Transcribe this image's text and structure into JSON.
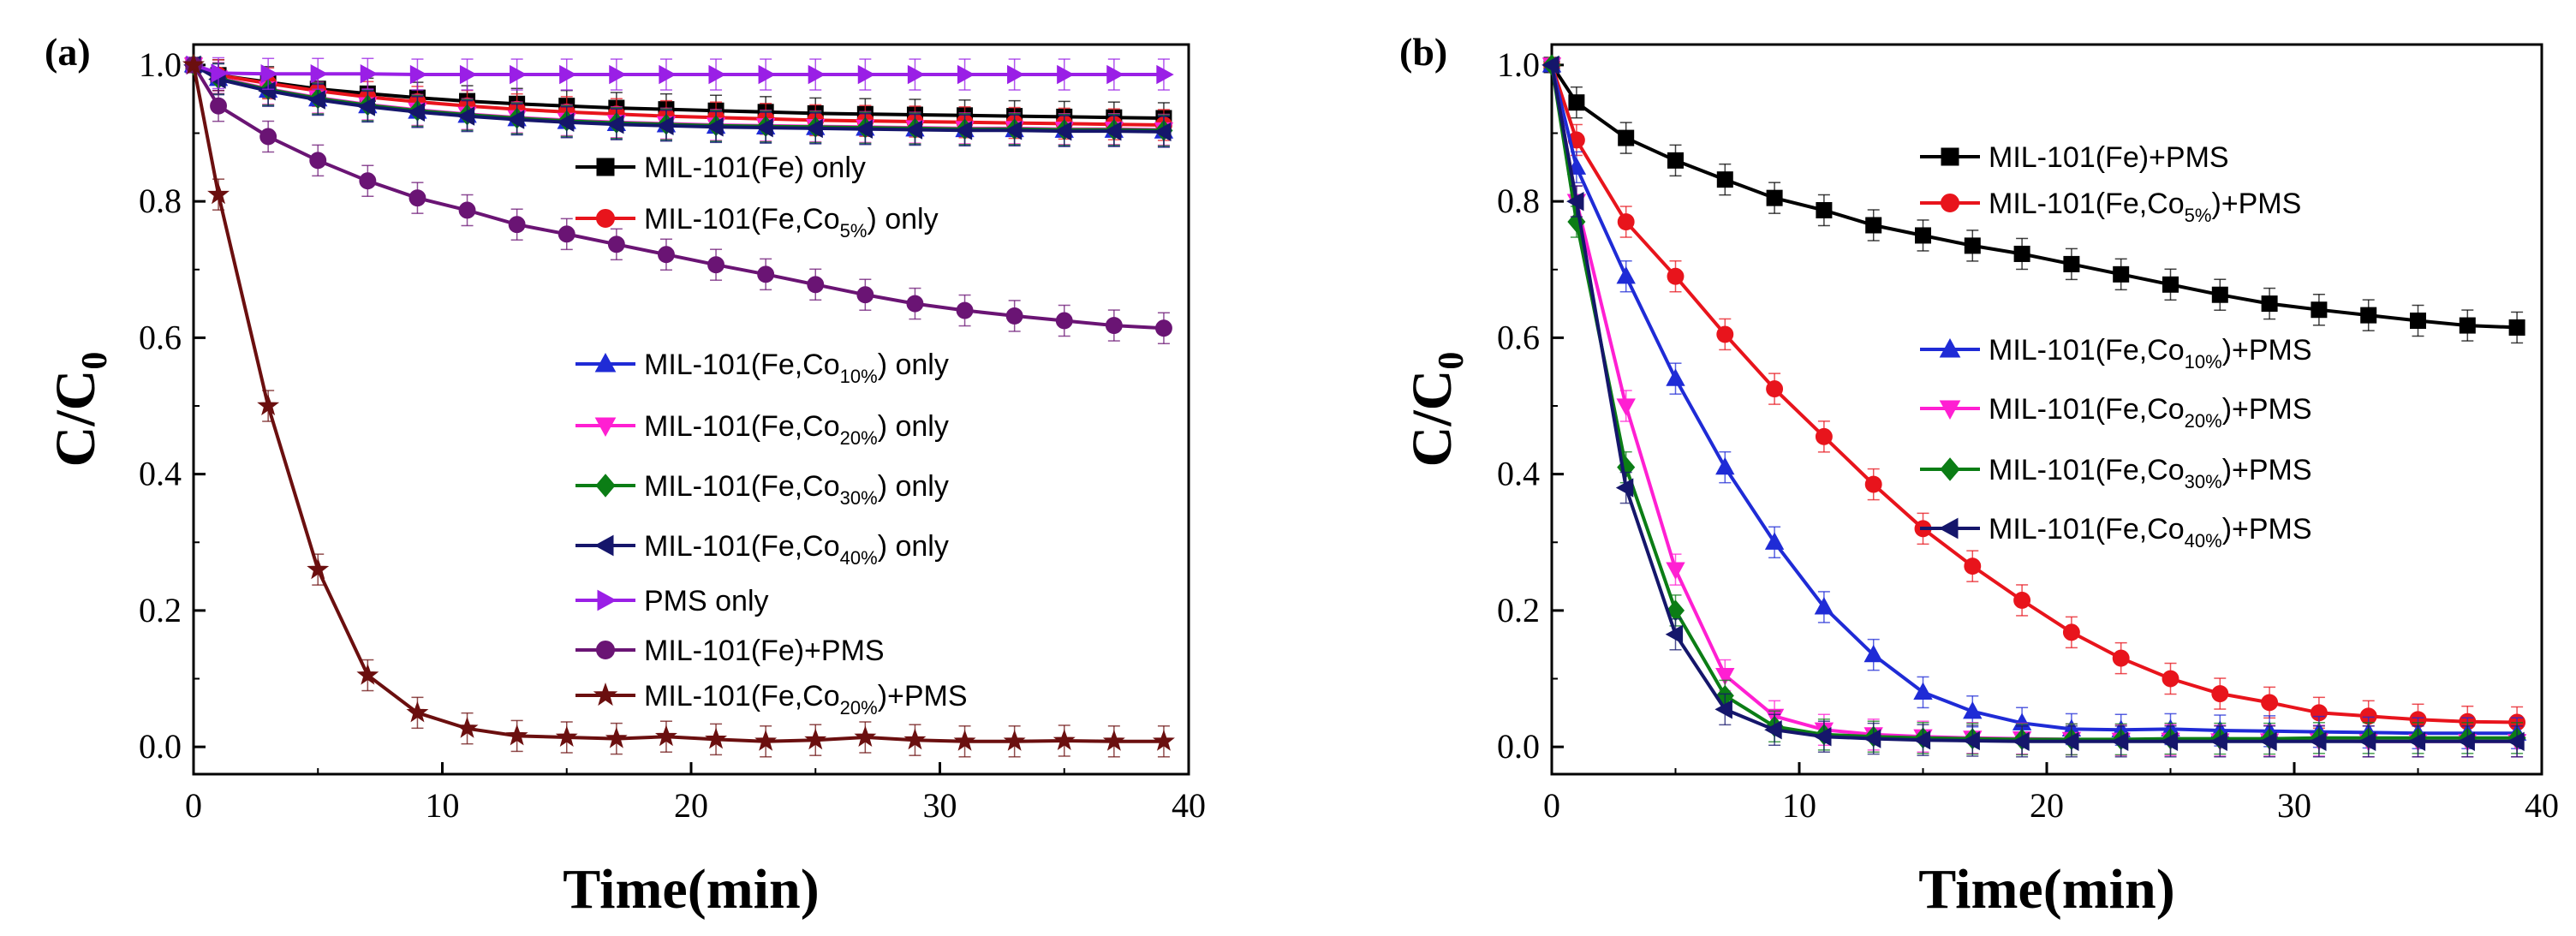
{
  "chart_data": [
    {
      "panel": "(a)",
      "type": "line",
      "xlabel": "Time(min)",
      "ylabel": "C/C0",
      "xlim": [
        0,
        40
      ],
      "ylim": [
        -0.04,
        1.03
      ],
      "xticks": [
        0,
        10,
        20,
        30,
        40
      ],
      "yticks": [
        0.0,
        0.2,
        0.4,
        0.6,
        0.8,
        1.0
      ],
      "x": [
        0,
        1,
        3,
        5,
        7,
        9,
        11,
        13,
        15,
        17,
        19,
        21,
        23,
        25,
        27,
        29,
        31,
        33,
        35,
        37,
        39
      ],
      "legend_position": "right, stacked",
      "series": [
        {
          "name": "MIL-101(Fe) only",
          "label_main": "MIL-101(Fe) only",
          "label_sub": "",
          "label_tail": "",
          "color": "#000000",
          "marker": "square",
          "values": [
            1.0,
            0.985,
            0.975,
            0.965,
            0.958,
            0.952,
            0.947,
            0.943,
            0.94,
            0.937,
            0.935,
            0.933,
            0.931,
            0.929,
            0.928,
            0.927,
            0.926,
            0.925,
            0.924,
            0.923,
            0.922
          ]
        },
        {
          "name": "MIL-101(Fe,Co5%) only",
          "label_main": "MIL-101(Fe,Co",
          "label_sub": "5%",
          "label_tail": ") only",
          "color": "#e8141c",
          "marker": "circle",
          "values": [
            1.0,
            0.985,
            0.973,
            0.962,
            0.953,
            0.946,
            0.94,
            0.935,
            0.931,
            0.928,
            0.925,
            0.923,
            0.921,
            0.919,
            0.918,
            0.917,
            0.916,
            0.915,
            0.914,
            0.913,
            0.912
          ]
        },
        {
          "name": "MIL-101(Fe,Co10%) only",
          "label_main": "MIL-101(Fe,Co",
          "label_sub": "10%",
          "label_tail": ") only",
          "color": "#1f2bd6",
          "marker": "triangle-up",
          "values": [
            1.0,
            0.98,
            0.963,
            0.95,
            0.94,
            0.932,
            0.926,
            0.921,
            0.917,
            0.914,
            0.912,
            0.91,
            0.909,
            0.908,
            0.907,
            0.906,
            0.905,
            0.905,
            0.904,
            0.904,
            0.903
          ]
        },
        {
          "name": "MIL-101(Fe,Co20%) only",
          "label_main": "MIL-101(Fe,Co",
          "label_sub": "20%",
          "label_tail": ") only",
          "color": "#ff1fd2",
          "marker": "triangle-down",
          "values": [
            1.0,
            0.981,
            0.965,
            0.952,
            0.942,
            0.934,
            0.928,
            0.923,
            0.919,
            0.916,
            0.914,
            0.912,
            0.911,
            0.91,
            0.909,
            0.908,
            0.907,
            0.907,
            0.906,
            0.906,
            0.905
          ]
        },
        {
          "name": "MIL-101(Fe,Co30%) only",
          "label_main": "MIL-101(Fe,Co",
          "label_sub": "30%",
          "label_tail": ") only",
          "color": "#0b7d15",
          "marker": "diamond",
          "values": [
            1.0,
            0.98,
            0.964,
            0.951,
            0.941,
            0.933,
            0.927,
            0.922,
            0.918,
            0.915,
            0.913,
            0.911,
            0.91,
            0.909,
            0.908,
            0.907,
            0.906,
            0.906,
            0.905,
            0.905,
            0.904
          ]
        },
        {
          "name": "MIL-101(Fe,Co40%) only",
          "label_main": "MIL-101(Fe,Co",
          "label_sub": "40%",
          "label_tail": ") only",
          "color": "#15166b",
          "marker": "triangle-left",
          "values": [
            1.0,
            0.979,
            0.962,
            0.949,
            0.939,
            0.931,
            0.925,
            0.92,
            0.916,
            0.913,
            0.911,
            0.909,
            0.908,
            0.907,
            0.906,
            0.905,
            0.904,
            0.904,
            0.903,
            0.903,
            0.902
          ]
        },
        {
          "name": "PMS only",
          "label_main": "PMS only",
          "label_sub": "",
          "label_tail": "",
          "color": "#9a1fe6",
          "marker": "triangle-right",
          "values": [
            1.0,
            0.988,
            0.987,
            0.987,
            0.987,
            0.986,
            0.986,
            0.986,
            0.986,
            0.986,
            0.986,
            0.986,
            0.986,
            0.986,
            0.986,
            0.986,
            0.986,
            0.986,
            0.986,
            0.986,
            0.986
          ]
        },
        {
          "name": "MIL-101(Fe)+PMS",
          "label_main": "MIL-101(Fe)+PMS",
          "label_sub": "",
          "label_tail": "",
          "color": "#6a1474",
          "marker": "circle",
          "values": [
            1.0,
            0.94,
            0.895,
            0.86,
            0.83,
            0.805,
            0.787,
            0.766,
            0.752,
            0.737,
            0.722,
            0.707,
            0.693,
            0.678,
            0.663,
            0.65,
            0.64,
            0.632,
            0.625,
            0.618,
            0.614
          ]
        },
        {
          "name": "MIL-101(Fe,Co20%)+PMS",
          "label_main": "MIL-101(Fe,Co",
          "label_sub": "20%",
          "label_tail": ")+PMS",
          "color": "#6b0f0f",
          "marker": "star",
          "values": [
            1.0,
            0.81,
            0.5,
            0.26,
            0.105,
            0.05,
            0.027,
            0.016,
            0.014,
            0.012,
            0.015,
            0.011,
            0.008,
            0.01,
            0.014,
            0.01,
            0.008,
            0.008,
            0.009,
            0.008,
            0.008
          ]
        }
      ]
    },
    {
      "panel": "(b)",
      "type": "line",
      "xlabel": "Time(min)",
      "ylabel": "C/C0",
      "xlim": [
        0,
        40
      ],
      "ylim": [
        -0.04,
        1.03
      ],
      "xticks": [
        0,
        10,
        20,
        30,
        40
      ],
      "yticks": [
        0.0,
        0.2,
        0.4,
        0.6,
        0.8,
        1.0
      ],
      "x": [
        0,
        1,
        3,
        5,
        7,
        9,
        11,
        13,
        15,
        17,
        19,
        21,
        23,
        25,
        27,
        29,
        31,
        33,
        35,
        37,
        39
      ],
      "legend_position": "top-right",
      "series": [
        {
          "name": "MIL-101(Fe)+PMS",
          "label_main": "MIL-101(Fe)+PMS",
          "label_sub": "",
          "label_tail": "",
          "color": "#000000",
          "marker": "square",
          "values": [
            1.0,
            0.945,
            0.893,
            0.86,
            0.832,
            0.805,
            0.787,
            0.765,
            0.75,
            0.735,
            0.723,
            0.708,
            0.693,
            0.678,
            0.663,
            0.65,
            0.641,
            0.633,
            0.625,
            0.618,
            0.615
          ]
        },
        {
          "name": "MIL-101(Fe,Co5%)+PMS",
          "label_main": "MIL-101(Fe,Co",
          "label_sub": "5%",
          "label_tail": ")+PMS",
          "color": "#e8141c",
          "marker": "circle",
          "values": [
            1.0,
            0.89,
            0.77,
            0.69,
            0.605,
            0.525,
            0.455,
            0.385,
            0.32,
            0.265,
            0.215,
            0.168,
            0.13,
            0.1,
            0.078,
            0.065,
            0.05,
            0.045,
            0.04,
            0.037,
            0.036
          ]
        },
        {
          "name": "MIL-101(Fe,Co10%)+PMS",
          "label_main": "MIL-101(Fe,Co",
          "label_sub": "10%",
          "label_tail": ")+PMS",
          "color": "#1f2bd6",
          "marker": "triangle-up",
          "values": [
            1.0,
            0.85,
            0.69,
            0.54,
            0.41,
            0.3,
            0.205,
            0.135,
            0.08,
            0.052,
            0.035,
            0.026,
            0.025,
            0.026,
            0.024,
            0.023,
            0.022,
            0.021,
            0.02,
            0.02,
            0.02
          ]
        },
        {
          "name": "MIL-101(Fe,Co20%)+PMS",
          "label_main": "MIL-101(Fe,Co",
          "label_sub": "20%",
          "label_tail": ")+PMS",
          "color": "#ff1fd2",
          "marker": "triangle-down",
          "values": [
            1.0,
            0.8,
            0.5,
            0.26,
            0.105,
            0.045,
            0.025,
            0.018,
            0.015,
            0.013,
            0.012,
            0.011,
            0.01,
            0.01,
            0.009,
            0.009,
            0.009,
            0.008,
            0.008,
            0.008,
            0.008
          ]
        },
        {
          "name": "MIL-101(Fe,Co30%)+PMS",
          "label_main": "MIL-101(Fe,Co",
          "label_sub": "30%",
          "label_tail": ")+PMS",
          "color": "#0b7d15",
          "marker": "diamond",
          "values": [
            1.0,
            0.77,
            0.41,
            0.2,
            0.075,
            0.03,
            0.018,
            0.015,
            0.013,
            0.012,
            0.011,
            0.011,
            0.011,
            0.012,
            0.012,
            0.012,
            0.013,
            0.013,
            0.013,
            0.013,
            0.013
          ]
        },
        {
          "name": "MIL-101(Fe,Co40%)+PMS",
          "label_main": "MIL-101(Fe,Co",
          "label_sub": "40%",
          "label_tail": ")+PMS",
          "color": "#15166b",
          "marker": "triangle-left",
          "values": [
            1.0,
            0.8,
            0.38,
            0.165,
            0.055,
            0.025,
            0.015,
            0.012,
            0.01,
            0.009,
            0.008,
            0.008,
            0.008,
            0.008,
            0.008,
            0.008,
            0.008,
            0.008,
            0.008,
            0.008,
            0.008
          ]
        }
      ]
    }
  ]
}
